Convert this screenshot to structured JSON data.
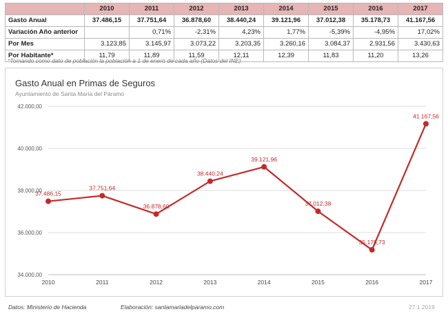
{
  "table": {
    "years": [
      "2010",
      "2011",
      "2012",
      "2013",
      "2014",
      "2015",
      "2016",
      "2017"
    ],
    "rows": [
      {
        "label": "Gasto Anual",
        "values": [
          "37.486,15",
          "37.751,64",
          "36.878,60",
          "38.440,24",
          "39.121,96",
          "37.012,38",
          "35.178,73",
          "41.167,56"
        ]
      },
      {
        "label": "Variación Año anterior",
        "values": [
          "",
          "0,71%",
          "-2,31%",
          "4,23%",
          "1,77%",
          "-5,39%",
          "-4,95%",
          "17,02%"
        ]
      },
      {
        "label": "Por Mes",
        "values": [
          "3.123,85",
          "3.145,97",
          "3.073,22",
          "3.203,35",
          "3.260,16",
          "3.084,37",
          "2.931,56",
          "3.430,63"
        ]
      },
      {
        "label": "Por Habitante*",
        "values": [
          "11,79",
          "11,89",
          "11,59",
          "12,11",
          "12,39",
          "11,83",
          "11,20",
          "13,26"
        ]
      }
    ],
    "footnote": "*Tomando como dato de población la población a 1 de enero de cada año (Datos del INE)"
  },
  "chart_data": {
    "type": "line",
    "title": "Gasto Anual en Primas de Seguros",
    "subtitle": "Ayuntamiento de Santa María del Páramo",
    "categories": [
      "2010",
      "2011",
      "2012",
      "2013",
      "2014",
      "2015",
      "2016",
      "2017"
    ],
    "series": [
      {
        "values": [
          37486.15,
          37751.64,
          36878.6,
          38440.24,
          39121.96,
          37012.38,
          35178.73,
          41167.56
        ]
      }
    ],
    "data_labels": [
      "37.486,15",
      "37.751,64",
      "36.878,60",
      "38.440,24",
      "39.121,96",
      "37.012,38",
      "35.178,73",
      "41.167,56"
    ],
    "y_ticks": [
      34000,
      36000,
      38000,
      40000,
      42000
    ],
    "y_tick_labels": [
      "34.000,00",
      "36.000,00",
      "38.000,00",
      "40.000,00",
      "42.000,00"
    ],
    "ylim": [
      34000,
      42000
    ],
    "grid": true,
    "legend": "none",
    "line_color": "#c62828"
  },
  "footer": {
    "source": "Datos: Ministerio de Hacienda",
    "author": "Elaboración: santamariadelparamo.com",
    "date": "27.1.2019"
  }
}
